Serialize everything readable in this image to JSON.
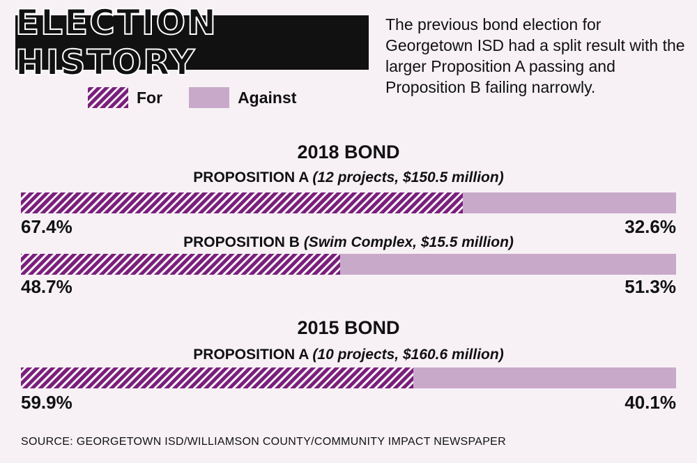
{
  "title": "ELECTION HISTORY",
  "intro": "The previous bond election for Georgetown ISD had a split result with the larger Proposition A passing and Proposition B failing narrowly.",
  "legend": {
    "for": "For",
    "against": "Against"
  },
  "colors": {
    "for": "#7a1f7c",
    "against": "#c9a9ca",
    "background": "#f7f1f6"
  },
  "source": "SOURCE: GEORGETOWN ISD/WILLIAMSON COUNTY/COMMUNITY IMPACT NEWSPAPER",
  "chart_data": {
    "type": "bar",
    "orientation": "horizontal",
    "stacked": true,
    "series": [
      {
        "name": "For"
      },
      {
        "name": "Against"
      }
    ],
    "groups": [
      {
        "title": "2018 BOND",
        "propositions": [
          {
            "name": "PROPOSITION A",
            "detail": "(12 projects, $150.5 million)",
            "for": 67.4,
            "against": 32.6,
            "for_label": "67.4%",
            "against_label": "32.6%"
          },
          {
            "name": "PROPOSITION B",
            "detail": "(Swim Complex, $15.5 million)",
            "for": 48.7,
            "against": 51.3,
            "for_label": "48.7%",
            "against_label": "51.3%"
          }
        ]
      },
      {
        "title": "2015 BOND",
        "propositions": [
          {
            "name": "PROPOSITION A",
            "detail": "(10 projects, $160.6 million)",
            "for": 59.9,
            "against": 40.1,
            "for_label": "59.9%",
            "against_label": "40.1%"
          }
        ]
      }
    ]
  }
}
